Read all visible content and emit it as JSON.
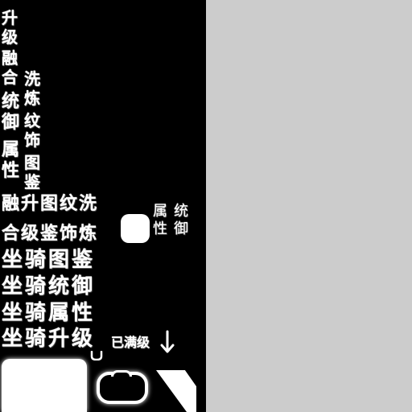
{
  "panel": {
    "right_color": "#cccccc",
    "atlas_background": "#000000"
  },
  "glyphs": {
    "sheng_ji_vertical": "升级",
    "rong_he_vertical": "融合",
    "tong_yu_vertical": "统御",
    "shu_xing_vertical": "属性",
    "xi_lian_vertical": "洗炼",
    "wen_shi_vertical": "纹饰",
    "tu_jian_vertical": "图鉴",
    "top_row": "融升图纹洗",
    "bottom_row": "合级鉴饰炼",
    "side_col1": "属性",
    "side_col2": "统御"
  },
  "labels": {
    "mount_codex": "坐骑图鉴",
    "mount_command": "坐骑统御",
    "mount_attributes": "坐骑属性",
    "mount_upgrade": "坐骑升级",
    "max_level": "已满级"
  },
  "icons": {
    "arrow": "down-arrow-icon",
    "hook": "hook-icon",
    "frame": "frame-icon",
    "corner": "corner-slash-icon"
  }
}
